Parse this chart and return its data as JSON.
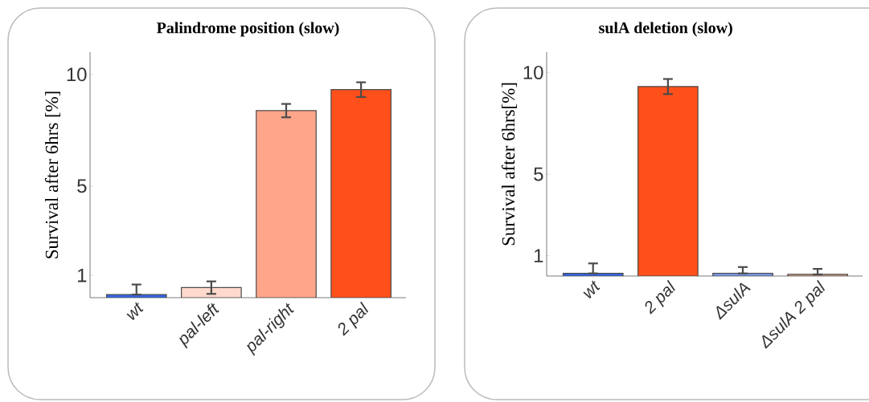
{
  "chart_data": [
    {
      "type": "bar",
      "title": "Palindrome position (slow)",
      "ylabel": "Survival after 6hrs [%]",
      "categories": [
        "wt",
        "pal-left",
        "pal-right",
        "2 pal"
      ],
      "values": [
        0.14,
        0.45,
        8.38,
        9.32
      ],
      "errors": [
        [
          0.14,
          0.59
        ],
        0.28,
        0.3,
        0.33
      ],
      "colors": [
        "#3366ee",
        "#ffd9cc",
        "#ffa68a",
        "#ff4f1a"
      ],
      "ylim": [
        0,
        11
      ],
      "yticks": [
        1,
        5,
        10
      ]
    },
    {
      "type": "bar",
      "title": "sulA deletion (slow)",
      "ylabel": "Survival after 6hrs[%]",
      "categories": [
        "wt",
        "2 pal",
        "ΔsulA",
        "ΔsulA 2 pal"
      ],
      "values": [
        0.13,
        9.31,
        0.13,
        0.08
      ],
      "errors": [
        [
          0.13,
          0.62
        ],
        0.37,
        [
          0.13,
          0.44
        ],
        [
          0.08,
          0.35
        ]
      ],
      "colors": [
        "#3366ee",
        "#ff4f1a",
        "#7b9cf0",
        "#f0a890"
      ],
      "ylim": [
        0,
        11
      ],
      "yticks": [
        1,
        5,
        10
      ]
    }
  ]
}
